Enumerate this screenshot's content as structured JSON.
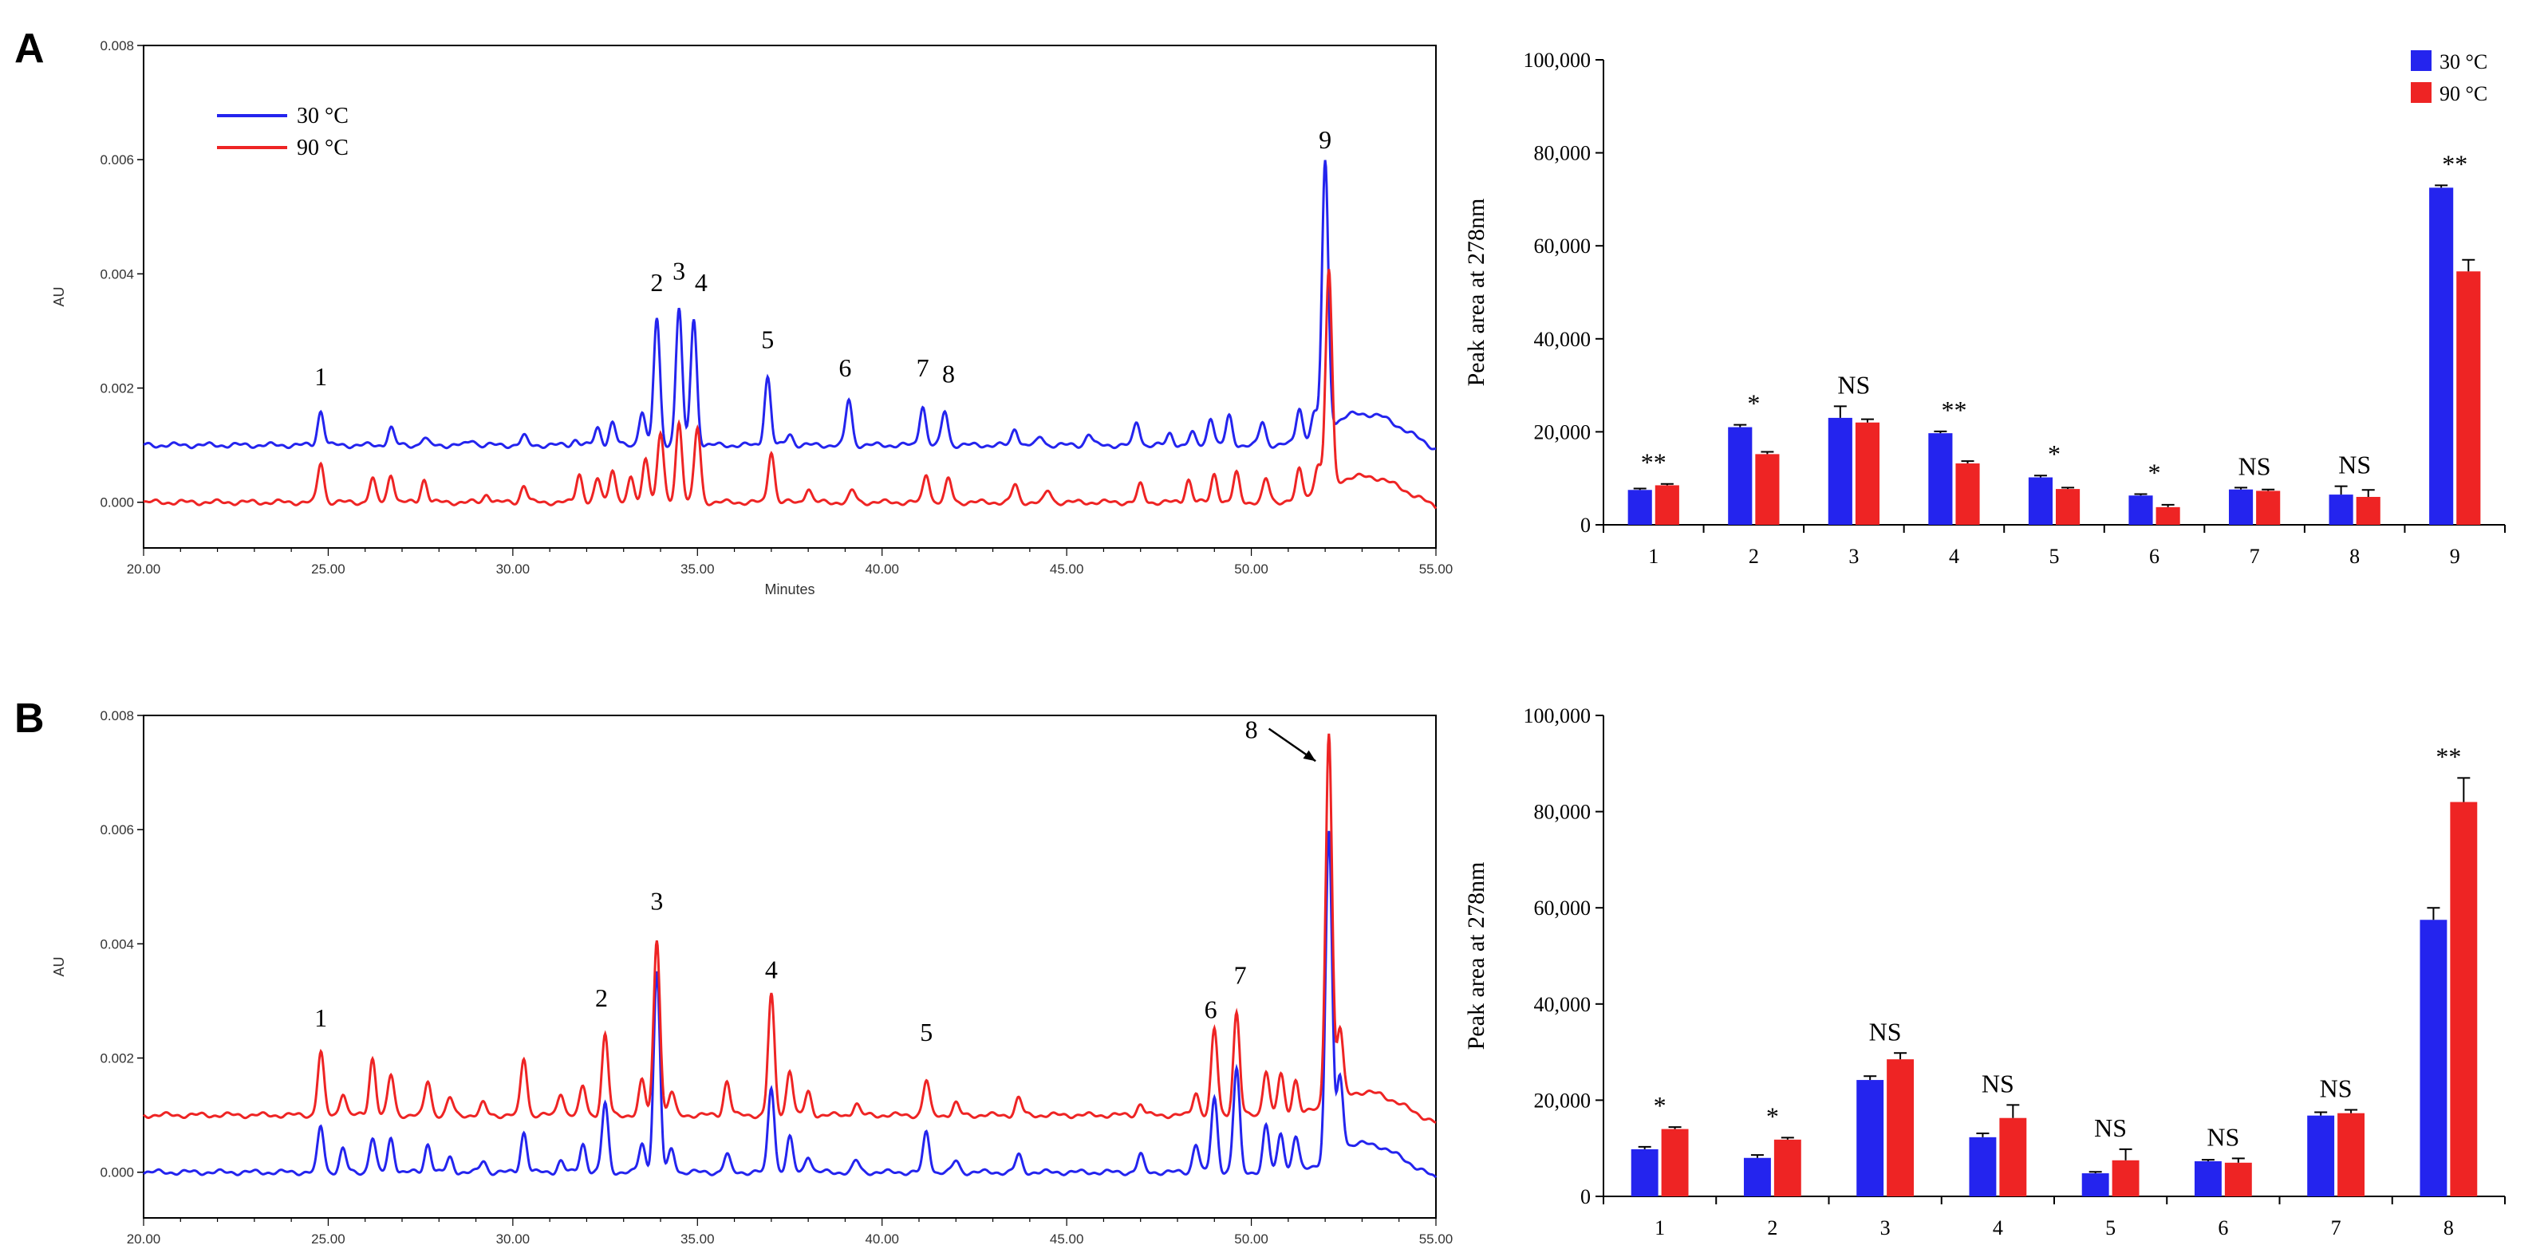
{
  "colors": {
    "blue": "#2424ee",
    "red": "#ee2424"
  },
  "chart_data": [
    {
      "id": "A-chromatogram",
      "panel_label": "A",
      "type": "line",
      "xlabel": "Minutes",
      "ylabel": "AU",
      "xlim": [
        20,
        55
      ],
      "ylim": [
        -0.0008,
        0.008
      ],
      "xticks": [
        "20.00",
        "25.00",
        "30.00",
        "35.00",
        "40.00",
        "45.00",
        "50.00",
        "55.00"
      ],
      "yticks": [
        "0.000",
        "0.002",
        "0.004",
        "0.006",
        "0.008"
      ],
      "ytick_values": [
        0,
        0.002,
        0.004,
        0.006,
        0.008
      ],
      "series": [
        {
          "name": "30 °C",
          "color": "#2424ee",
          "baseline": 0.001,
          "peaks": [
            [
              24.8,
              0.0006
            ],
            [
              26.7,
              0.0003
            ],
            [
              27.6,
              0.00012
            ],
            [
              28.9,
              0.0001
            ],
            [
              30.3,
              0.00015
            ],
            [
              31.7,
              0.0001
            ],
            [
              32.3,
              0.0003
            ],
            [
              32.7,
              0.0004
            ],
            [
              33.5,
              0.0006
            ],
            [
              33.9,
              0.0022
            ],
            [
              34.5,
              0.0024
            ],
            [
              34.9,
              0.0022
            ],
            [
              36.9,
              0.0012
            ],
            [
              37.5,
              0.0002
            ],
            [
              39.1,
              0.0008
            ],
            [
              41.1,
              0.0007
            ],
            [
              41.7,
              0.0006
            ],
            [
              43.6,
              0.0003
            ],
            [
              44.3,
              0.00015
            ],
            [
              45.6,
              0.0002
            ],
            [
              46.9,
              0.0004
            ],
            [
              47.8,
              0.0002
            ],
            [
              48.4,
              0.0002
            ],
            [
              48.9,
              0.0005
            ],
            [
              49.4,
              0.0005
            ],
            [
              50.3,
              0.0004
            ],
            [
              51.3,
              0.0006
            ],
            [
              51.7,
              0.0004
            ],
            [
              52.0,
              0.0047
            ]
          ],
          "hump": [
            52.9,
            0.00055,
            1.5
          ]
        },
        {
          "name": "90 °C",
          "color": "#ee2424",
          "baseline": 0.0,
          "peaks": [
            [
              24.8,
              0.0007
            ],
            [
              26.2,
              0.0004
            ],
            [
              26.7,
              0.0005
            ],
            [
              27.6,
              0.0004
            ],
            [
              29.3,
              0.00015
            ],
            [
              30.3,
              0.0003
            ],
            [
              31.8,
              0.0005
            ],
            [
              32.3,
              0.0004
            ],
            [
              32.7,
              0.0006
            ],
            [
              33.2,
              0.0004
            ],
            [
              33.6,
              0.0008
            ],
            [
              34.0,
              0.0012
            ],
            [
              34.5,
              0.0014
            ],
            [
              35.0,
              0.0013
            ],
            [
              37.0,
              0.0009
            ],
            [
              38.0,
              0.00025
            ],
            [
              39.2,
              0.0002
            ],
            [
              41.2,
              0.0005
            ],
            [
              41.8,
              0.0004
            ],
            [
              43.6,
              0.0003
            ],
            [
              44.5,
              0.0002
            ],
            [
              47.0,
              0.0003
            ],
            [
              48.3,
              0.0004
            ],
            [
              49.0,
              0.0005
            ],
            [
              49.6,
              0.0005
            ],
            [
              50.4,
              0.0004
            ],
            [
              51.3,
              0.0005
            ],
            [
              51.8,
              0.0005
            ],
            [
              52.1,
              0.0038
            ]
          ],
          "hump": [
            52.9,
            0.00045,
            1.6
          ]
        }
      ],
      "peak_labels": [
        {
          "text": "1",
          "x": 24.8,
          "y": 0.00205
        },
        {
          "text": "2",
          "x": 33.9,
          "y": 0.0037
        },
        {
          "text": "3",
          "x": 34.5,
          "y": 0.0039
        },
        {
          "text": "4",
          "x": 35.1,
          "y": 0.0037
        },
        {
          "text": "5",
          "x": 36.9,
          "y": 0.0027
        },
        {
          "text": "6",
          "x": 39.0,
          "y": 0.0022
        },
        {
          "text": "7",
          "x": 41.1,
          "y": 0.0022
        },
        {
          "text": "8",
          "x": 41.8,
          "y": 0.0021
        },
        {
          "text": "9",
          "x": 52.0,
          "y": 0.0062
        }
      ],
      "legend": [
        {
          "label": "30 °C",
          "color": "#2424ee"
        },
        {
          "label": "90 °C",
          "color": "#ee2424"
        }
      ]
    },
    {
      "id": "A-bars",
      "type": "bar",
      "xlabel": "",
      "ylabel": "Peak area at 278nm",
      "ylim": [
        0,
        100000
      ],
      "yticks": [
        "0",
        "20,000",
        "40,000",
        "60,000",
        "80,000",
        "100,000"
      ],
      "ytick_values": [
        0,
        20000,
        40000,
        60000,
        80000,
        100000
      ],
      "categories": [
        "1",
        "2",
        "3",
        "4",
        "5",
        "6",
        "7",
        "8",
        "9"
      ],
      "series": [
        {
          "name": "30 °C",
          "color": "#2424ee",
          "values": [
            7500,
            21000,
            23000,
            19700,
            10200,
            6300,
            7600,
            6500,
            72500
          ],
          "errors": [
            300,
            500,
            2500,
            400,
            400,
            300,
            400,
            1800,
            500
          ]
        },
        {
          "name": "90 °C",
          "color": "#ee2424",
          "values": [
            8500,
            15200,
            22000,
            13200,
            7700,
            3800,
            7300,
            6000,
            54500
          ],
          "errors": [
            300,
            500,
            700,
            500,
            300,
            500,
            300,
            1500,
            2500
          ]
        }
      ],
      "significance": [
        "**",
        "*",
        "NS",
        "**",
        "*",
        "*",
        "NS",
        "NS",
        "**"
      ],
      "legend": [
        {
          "label": "30 °C",
          "color": "#2424ee"
        },
        {
          "label": "90 °C",
          "color": "#ee2424"
        }
      ]
    },
    {
      "id": "B-chromatogram",
      "panel_label": "B",
      "type": "line",
      "xlabel": "",
      "ylabel": "AU",
      "xlim": [
        20,
        55
      ],
      "ylim": [
        -0.0008,
        0.008
      ],
      "xticks": [
        "20.00",
        "25.00",
        "30.00",
        "35.00",
        "40.00",
        "45.00",
        "50.00",
        "55.00"
      ],
      "yticks": [
        "0.000",
        "0.002",
        "0.004",
        "0.006",
        "0.008"
      ],
      "ytick_values": [
        0,
        0.002,
        0.004,
        0.006,
        0.008
      ],
      "series": [
        {
          "name": "blue trace",
          "color": "#2424ee",
          "baseline": 0.0,
          "peaks": [
            [
              24.8,
              0.0008
            ],
            [
              25.4,
              0.0004
            ],
            [
              26.2,
              0.0006
            ],
            [
              26.7,
              0.0006
            ],
            [
              27.7,
              0.0005
            ],
            [
              28.3,
              0.00025
            ],
            [
              29.2,
              0.0002
            ],
            [
              30.3,
              0.0007
            ],
            [
              31.3,
              0.0002
            ],
            [
              31.9,
              0.0005
            ],
            [
              32.5,
              0.0012
            ],
            [
              33.5,
              0.0005
            ],
            [
              33.9,
              0.0035
            ],
            [
              34.3,
              0.0004
            ],
            [
              35.8,
              0.0003
            ],
            [
              37.0,
              0.0015
            ],
            [
              37.5,
              0.0006
            ],
            [
              38.0,
              0.0003
            ],
            [
              39.3,
              0.0002
            ],
            [
              41.2,
              0.0007
            ],
            [
              42.0,
              0.0002
            ],
            [
              43.7,
              0.0003
            ],
            [
              47.0,
              0.0003
            ],
            [
              48.5,
              0.0005
            ],
            [
              49.0,
              0.0013
            ],
            [
              49.6,
              0.0018
            ],
            [
              50.4,
              0.0008
            ],
            [
              50.8,
              0.0007
            ],
            [
              51.2,
              0.0006
            ],
            [
              52.1,
              0.0057
            ],
            [
              52.4,
              0.0013
            ]
          ],
          "hump": [
            52.9,
            0.0005,
            1.4
          ]
        },
        {
          "name": "red trace",
          "color": "#ee2424",
          "baseline": 0.001,
          "peaks": [
            [
              24.8,
              0.0011
            ],
            [
              25.4,
              0.0004
            ],
            [
              26.2,
              0.001
            ],
            [
              26.7,
              0.0007
            ],
            [
              27.7,
              0.0006
            ],
            [
              28.3,
              0.0003
            ],
            [
              29.2,
              0.0002
            ],
            [
              30.3,
              0.001
            ],
            [
              31.3,
              0.0004
            ],
            [
              31.9,
              0.0005
            ],
            [
              32.5,
              0.0014
            ],
            [
              33.5,
              0.0006
            ],
            [
              33.9,
              0.0031
            ],
            [
              34.3,
              0.0004
            ],
            [
              35.8,
              0.0006
            ],
            [
              37.0,
              0.0021
            ],
            [
              37.5,
              0.0008
            ],
            [
              38.0,
              0.0004
            ],
            [
              39.3,
              0.0002
            ],
            [
              41.2,
              0.0006
            ],
            [
              42.0,
              0.0002
            ],
            [
              43.7,
              0.0003
            ],
            [
              47.0,
              0.0002
            ],
            [
              48.5,
              0.0004
            ],
            [
              49.0,
              0.0015
            ],
            [
              49.6,
              0.0018
            ],
            [
              50.4,
              0.0008
            ],
            [
              50.8,
              0.0007
            ],
            [
              51.2,
              0.0006
            ],
            [
              52.1,
              0.0065
            ],
            [
              52.4,
              0.0012
            ]
          ],
          "hump": [
            52.9,
            0.0004,
            1.4
          ]
        }
      ],
      "peak_labels": [
        {
          "text": "1",
          "x": 24.8,
          "y": 0.00255
        },
        {
          "text": "2",
          "x": 32.4,
          "y": 0.0029
        },
        {
          "text": "3",
          "x": 33.9,
          "y": 0.0046
        },
        {
          "text": "4",
          "x": 37.0,
          "y": 0.0034
        },
        {
          "text": "5",
          "x": 41.2,
          "y": 0.0023
        },
        {
          "text": "6",
          "x": 48.9,
          "y": 0.0027
        },
        {
          "text": "7",
          "x": 49.7,
          "y": 0.0033
        },
        {
          "text": "8",
          "x": 50.0,
          "y": 0.0076
        }
      ]
    },
    {
      "id": "B-bars",
      "type": "bar",
      "xlabel": "",
      "ylabel": "Peak area at 278nm",
      "ylim": [
        0,
        100000
      ],
      "yticks": [
        "0",
        "20,000",
        "40,000",
        "60,000",
        "80,000",
        "100,000"
      ],
      "ytick_values": [
        0,
        20000,
        40000,
        60000,
        80000,
        100000
      ],
      "categories": [
        "1",
        "2",
        "3",
        "4",
        "5",
        "6",
        "7",
        "8"
      ],
      "series": [
        {
          "name": "30 °C",
          "color": "#2424ee",
          "values": [
            9800,
            8000,
            24200,
            12300,
            4800,
            7300,
            16800,
            57500
          ],
          "errors": [
            500,
            600,
            800,
            800,
            300,
            300,
            700,
            2500
          ]
        },
        {
          "name": "90 °C",
          "color": "#ee2424",
          "values": [
            14000,
            11800,
            28500,
            16300,
            7500,
            7000,
            17300,
            82000
          ],
          "errors": [
            400,
            400,
            1300,
            2700,
            2300,
            900,
            700,
            5000
          ]
        }
      ],
      "significance": [
        "*",
        "*",
        "NS",
        "NS",
        "NS",
        "NS",
        "NS",
        "**"
      ]
    }
  ]
}
